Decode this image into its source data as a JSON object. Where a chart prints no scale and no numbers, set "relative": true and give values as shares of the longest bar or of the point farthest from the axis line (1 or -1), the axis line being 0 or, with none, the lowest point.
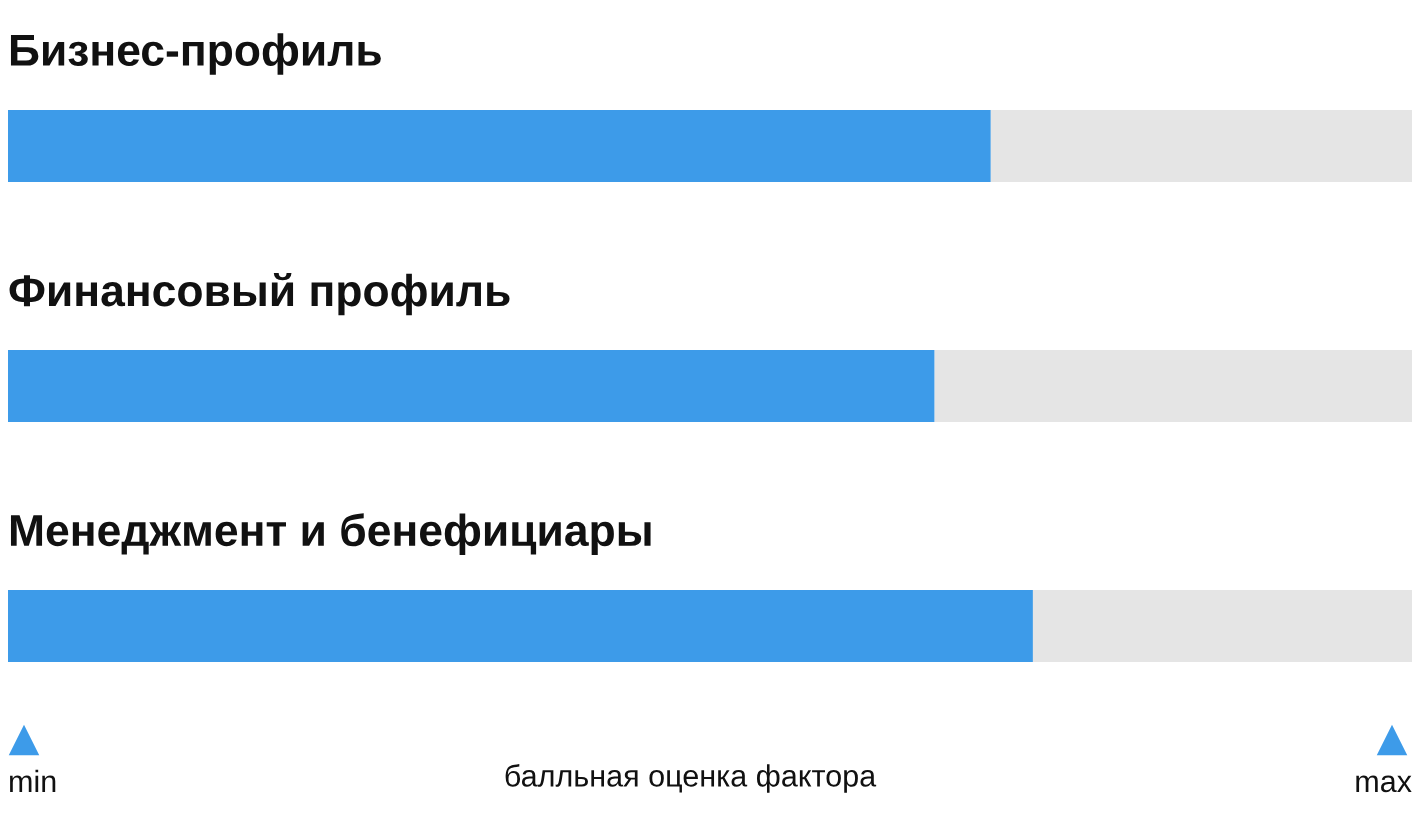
{
  "chart_data": {
    "type": "bar",
    "orientation": "horizontal",
    "stacked": true,
    "relative": true,
    "categories": [
      "Бизнес-профиль",
      "Финансовый профиль",
      "Менеджмент и бенефициары"
    ],
    "series": [
      {
        "color": "#3d9be9",
        "values": [
          0.7,
          0.66,
          0.73
        ]
      },
      {
        "color": "#e5e5e5",
        "values": [
          0.3,
          0.34,
          0.27
        ]
      }
    ],
    "xlabel": "балльная оценка фактора",
    "annotations": [
      "min",
      "max"
    ]
  }
}
